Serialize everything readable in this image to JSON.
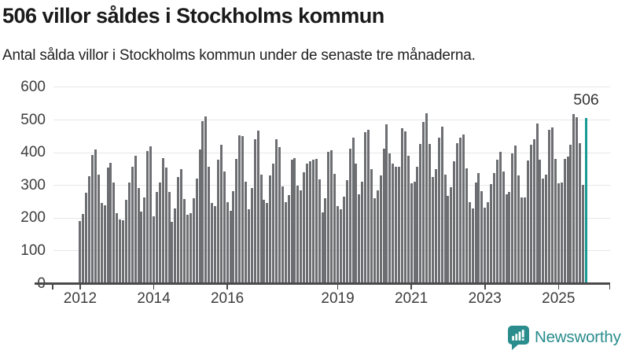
{
  "header": {
    "title": "506 villor såldes i Stockholms kommun",
    "subtitle": "Antal sålda villor i Stockholms kommun under de senaste tre månaderna."
  },
  "annotation": {
    "latest_value_label": "506"
  },
  "logo": {
    "text": "Newsworthy",
    "icon": "newsworthy-speech-bubble-bar-chart-icon"
  },
  "colors": {
    "bar": "#6d6e72",
    "highlight": "#1a9a96",
    "gridline": "#e7e7e7",
    "axis": "#4a4a4a",
    "tick_label": "#3d3d3d",
    "title": "#1a1a1a",
    "logo": "#2a8c8c"
  },
  "chart_data": {
    "type": "bar",
    "title": "506 villor såldes i Stockholms kommun",
    "subtitle": "Antal sålda villor i Stockholms kommun under de senaste tre månaderna.",
    "xlabel": "",
    "ylabel": "",
    "ylim": [
      0,
      600
    ],
    "grid": "horizontal",
    "legend": "none",
    "frequency": "monthly",
    "x_start": "2012-01",
    "y_tick_labels": [
      "0",
      "100",
      "200",
      "300",
      "400",
      "500",
      "600"
    ],
    "x_tick_labels": [
      "2012",
      "2014",
      "2016",
      "2019",
      "2021",
      "2023",
      "2025"
    ],
    "x_tick_month_indices": [
      0,
      24,
      48,
      84,
      108,
      132,
      156
    ],
    "values": [
      190,
      212,
      278,
      328,
      392,
      410,
      332,
      247,
      240,
      355,
      368,
      310,
      214,
      197,
      193,
      257,
      308,
      356,
      391,
      293,
      220,
      263,
      406,
      420,
      205,
      280,
      310,
      383,
      355,
      280,
      188,
      230,
      325,
      350,
      258,
      210,
      214,
      260,
      320,
      410,
      496,
      512,
      358,
      246,
      237,
      378,
      425,
      342,
      248,
      222,
      283,
      380,
      452,
      450,
      312,
      228,
      293,
      440,
      468,
      332,
      255,
      246,
      330,
      366,
      440,
      418,
      298,
      250,
      270,
      378,
      383,
      300,
      286,
      340,
      366,
      374,
      378,
      380,
      318,
      218,
      262,
      402,
      408,
      336,
      237,
      228,
      266,
      317,
      412,
      446,
      366,
      272,
      312,
      462,
      469,
      350,
      262,
      286,
      330,
      413,
      488,
      398,
      366,
      358,
      358,
      474,
      466,
      390,
      306,
      312,
      358,
      426,
      493,
      520,
      426,
      326,
      350,
      445,
      480,
      334,
      269,
      294,
      374,
      429,
      446,
      456,
      352,
      250,
      230,
      310,
      338,
      282,
      232,
      250,
      304,
      338,
      378,
      402,
      342,
      274,
      280,
      398,
      422,
      330,
      264,
      264,
      376,
      425,
      442,
      490,
      378,
      320,
      334,
      470,
      477,
      382,
      306,
      309,
      382,
      388,
      424,
      518,
      509,
      429,
      302,
      506
    ],
    "highlight": {
      "index": 165,
      "value": 506,
      "label": "506"
    }
  }
}
